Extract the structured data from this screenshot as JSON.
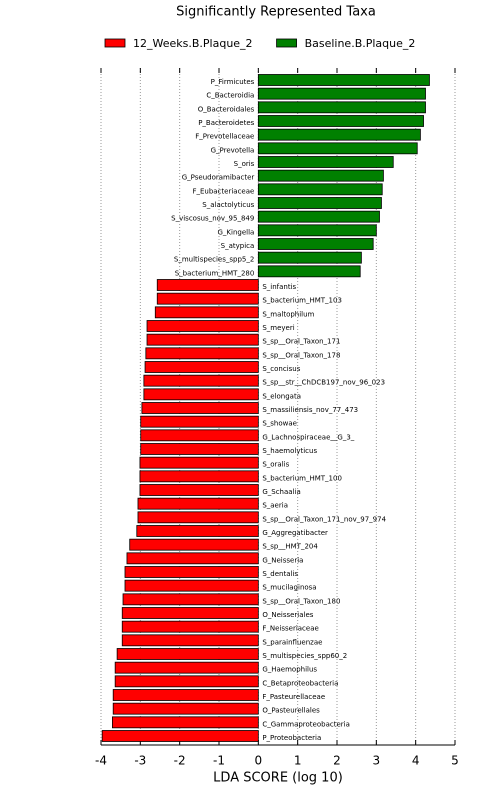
{
  "chart_data": {
    "type": "barh",
    "title": "Significantly Represented Taxa",
    "xlabel": "LDA SCORE (log 10)",
    "xlim": [
      -4,
      5
    ],
    "xticks": [
      -4,
      -3,
      -2,
      -1,
      0,
      1,
      2,
      3,
      4,
      5
    ],
    "grid": true,
    "legend": "top",
    "series": [
      {
        "name": "12_Weeks.B.Plaque_2",
        "color": "#ff0000",
        "categories": [
          "S_infantis",
          "S_bacterium_HMT_103",
          "S_maltophilum",
          "S_meyeri",
          "S_sp__Oral_Taxon_171",
          "S_sp__Oral_Taxon_178",
          "S_concisus",
          "S_sp__str__ChDCB197_nov_96_023",
          "S_elongata",
          "S_massiliensis_nov_77_473",
          "S_showae",
          "G_Lachnospiraceae__G_3_",
          "S_haemolyticus",
          "S_oralis",
          "S_bacterium_HMT_100",
          "G_Schaalia",
          "S_aeria",
          "S_sp__Oral_Taxon_171_nov_97_974",
          "G_Aggregatibacter",
          "S_sp__HMT_204",
          "G_Neisseria",
          "S_dentalis",
          "S_mucilaginosa",
          "S_sp__Oral_Taxon_180",
          "O_Neisseriales",
          "F_Neisseriaceae",
          "S_parainfluenzae",
          "S_multispecies_spp60_2",
          "G_Haemophilus",
          "C_Betaproteobacteria",
          "F_Pasteurellaceae",
          "O_Pasteurellales",
          "C_Gammaproteobacteria",
          "P_Proteobacteria"
        ],
        "values": [
          -2.57,
          -2.57,
          -2.62,
          -2.83,
          -2.83,
          -2.86,
          -2.88,
          -2.91,
          -2.91,
          -2.96,
          -2.99,
          -2.99,
          -2.99,
          -3.01,
          -3.01,
          -3.01,
          -3.06,
          -3.06,
          -3.09,
          -3.27,
          -3.34,
          -3.39,
          -3.39,
          -3.44,
          -3.46,
          -3.46,
          -3.46,
          -3.59,
          -3.64,
          -3.64,
          -3.69,
          -3.69,
          -3.71,
          -3.97
        ]
      },
      {
        "name": "Baseline.B.Plaque_2",
        "color": "#008000",
        "categories": [
          "P_Firmicutes",
          "C_Bacteroidia",
          "O_Bacteroidales",
          "P_Bacteroidetes",
          "F_Prevotellaceae",
          "G_Prevotella",
          "S_oris",
          "G_Pseudoramibacter",
          "F_Eubacteriaceae",
          "S_alactolyticus",
          "S_viscosus_nov_95_849",
          "G_Kingella",
          "S_atypica",
          "S_multispecies_spp5_2",
          "S_bacterium_HMT_280"
        ],
        "values": [
          4.35,
          4.25,
          4.25,
          4.2,
          4.12,
          4.04,
          3.43,
          3.18,
          3.15,
          3.13,
          3.08,
          3.0,
          2.92,
          2.62,
          2.59
        ]
      }
    ]
  }
}
